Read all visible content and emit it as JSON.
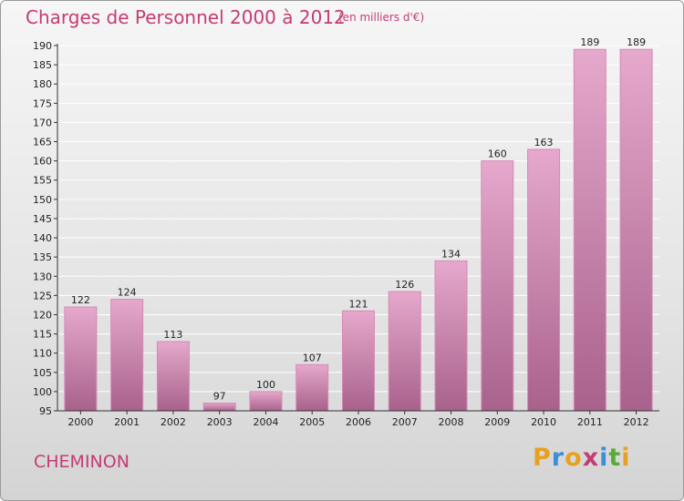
{
  "header": {
    "title": "Charges de Personnel 2000 à 2012",
    "subtitle": "(en milliers d'€)"
  },
  "footer": {
    "commune": "CHEMINON",
    "logo": {
      "letters": [
        "P",
        "r",
        "o",
        "x",
        "i",
        "t",
        "i"
      ],
      "colors": [
        "#e8a020",
        "#3a8fd8",
        "#e8a020",
        "#c43c74",
        "#3a8fd8",
        "#5aaa3a",
        "#e8a020"
      ]
    }
  },
  "colors": {
    "bar_light": "#e6a8cc",
    "bar_dark": "#a8628c",
    "bar_top": "#d68ab5",
    "axis": "#333333",
    "text": "#222222",
    "grid": "#ffffff"
  },
  "chart_data": {
    "type": "bar",
    "categories": [
      "2000",
      "2001",
      "2002",
      "2003",
      "2004",
      "2005",
      "2006",
      "2007",
      "2008",
      "2009",
      "2010",
      "2011",
      "2012"
    ],
    "values": [
      122,
      124,
      113,
      97,
      100,
      107,
      121,
      126,
      134,
      160,
      163,
      189,
      189
    ],
    "title": "Charges de Personnel 2000 à 2012",
    "xlabel": "",
    "ylabel": "",
    "ylim": [
      95,
      190
    ],
    "yticks": [
      95,
      100,
      105,
      110,
      115,
      120,
      125,
      130,
      135,
      140,
      145,
      150,
      155,
      160,
      165,
      170,
      175,
      180,
      185,
      190
    ],
    "grid": true,
    "legend": "none"
  }
}
